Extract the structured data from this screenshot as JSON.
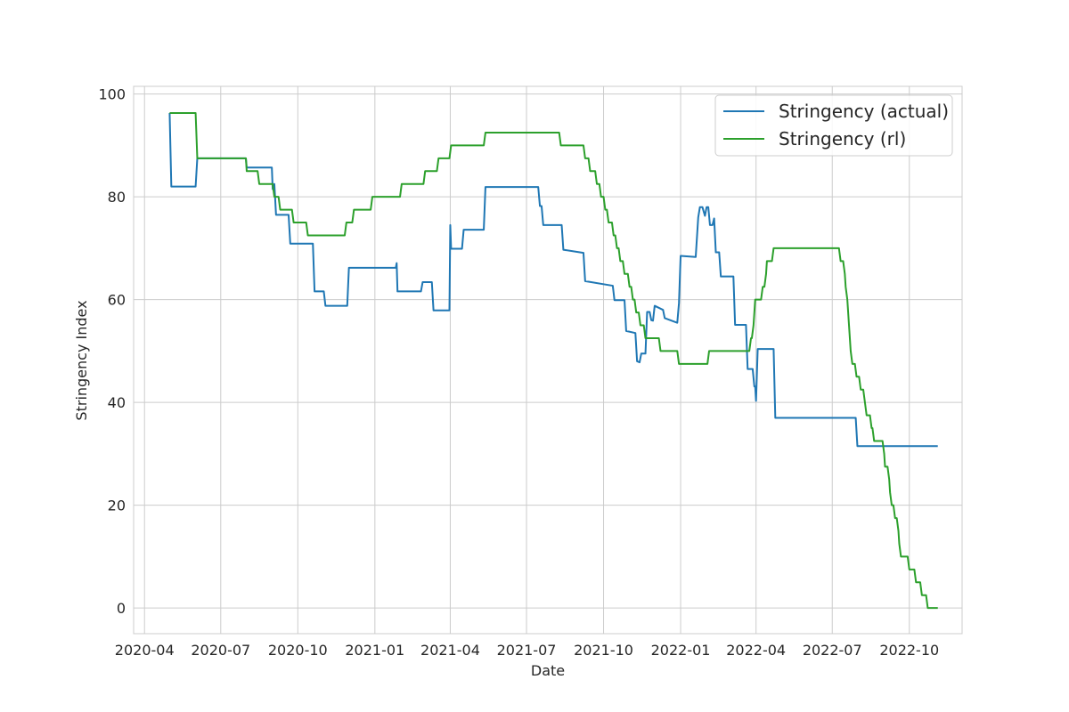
{
  "chart_data": {
    "type": "line",
    "title": "",
    "xlabel": "Date",
    "ylabel": "Stringency Index",
    "xlim": [
      "2020-03-19",
      "2022-12-03"
    ],
    "ylim": [
      -5,
      101.5
    ],
    "grid": true,
    "legend_position": "top-right",
    "x_ticks": [
      {
        "date": "2020-04-01",
        "label": "2020-04"
      },
      {
        "date": "2020-07-01",
        "label": "2020-07"
      },
      {
        "date": "2020-10-01",
        "label": "2020-10"
      },
      {
        "date": "2021-01-01",
        "label": "2021-01"
      },
      {
        "date": "2021-04-01",
        "label": "2021-04"
      },
      {
        "date": "2021-07-01",
        "label": "2021-07"
      },
      {
        "date": "2021-10-01",
        "label": "2021-10"
      },
      {
        "date": "2022-01-01",
        "label": "2022-01"
      },
      {
        "date": "2022-04-01",
        "label": "2022-04"
      },
      {
        "date": "2022-07-01",
        "label": "2022-07"
      },
      {
        "date": "2022-10-01",
        "label": "2022-10"
      }
    ],
    "y_ticks": [
      0,
      20,
      40,
      60,
      80,
      100
    ],
    "series": [
      {
        "name": "Stringency (actual)",
        "color": "#1f77b4",
        "points": [
          [
            "2020-05-01",
            96.3
          ],
          [
            "2020-05-03",
            82.0
          ],
          [
            "2020-06-01",
            82.0
          ],
          [
            "2020-06-03",
            87.5
          ],
          [
            "2020-07-31",
            87.5
          ],
          [
            "2020-08-01",
            85.7
          ],
          [
            "2020-08-31",
            85.7
          ],
          [
            "2020-09-01",
            81.5
          ],
          [
            "2020-09-03",
            82.5
          ],
          [
            "2020-09-05",
            76.5
          ],
          [
            "2020-09-20",
            76.5
          ],
          [
            "2020-09-22",
            70.9
          ],
          [
            "2020-10-19",
            70.9
          ],
          [
            "2020-10-21",
            61.6
          ],
          [
            "2020-11-01",
            61.6
          ],
          [
            "2020-11-03",
            58.8
          ],
          [
            "2020-11-29",
            58.8
          ],
          [
            "2020-12-01",
            66.2
          ],
          [
            "2021-01-26",
            66.2
          ],
          [
            "2021-01-27",
            67.1
          ],
          [
            "2021-01-28",
            61.6
          ],
          [
            "2021-02-25",
            61.6
          ],
          [
            "2021-02-27",
            63.4
          ],
          [
            "2021-03-10",
            63.4
          ],
          [
            "2021-03-12",
            57.9
          ],
          [
            "2021-03-31",
            57.9
          ],
          [
            "2021-04-01",
            74.5
          ],
          [
            "2021-04-02",
            69.9
          ],
          [
            "2021-04-15",
            69.9
          ],
          [
            "2021-04-17",
            73.6
          ],
          [
            "2021-05-11",
            73.6
          ],
          [
            "2021-05-13",
            81.9
          ],
          [
            "2021-07-15",
            81.9
          ],
          [
            "2021-07-17",
            78.2
          ],
          [
            "2021-07-19",
            78.2
          ],
          [
            "2021-07-21",
            74.5
          ],
          [
            "2021-08-12",
            74.5
          ],
          [
            "2021-08-14",
            69.7
          ],
          [
            "2021-09-07",
            69.1
          ],
          [
            "2021-09-09",
            63.6
          ],
          [
            "2021-10-12",
            62.7
          ],
          [
            "2021-10-14",
            59.9
          ],
          [
            "2021-10-26",
            59.9
          ],
          [
            "2021-10-28",
            53.9
          ],
          [
            "2021-11-08",
            53.5
          ],
          [
            "2021-11-10",
            48.0
          ],
          [
            "2021-11-13",
            47.8
          ],
          [
            "2021-11-15",
            49.5
          ],
          [
            "2021-11-20",
            49.5
          ],
          [
            "2021-11-22",
            57.6
          ],
          [
            "2021-11-25",
            57.6
          ],
          [
            "2021-11-27",
            56.0
          ],
          [
            "2021-11-29",
            55.9
          ],
          [
            "2021-12-01",
            58.8
          ],
          [
            "2021-12-11",
            58.0
          ],
          [
            "2021-12-13",
            56.4
          ],
          [
            "2021-12-28",
            55.5
          ],
          [
            "2021-12-30",
            59.3
          ],
          [
            "2022-01-01",
            68.5
          ],
          [
            "2022-01-19",
            68.3
          ],
          [
            "2022-01-22",
            76.0
          ],
          [
            "2022-01-24",
            78.0
          ],
          [
            "2022-01-27",
            78.0
          ],
          [
            "2022-01-30",
            76.3
          ],
          [
            "2022-02-01",
            78.0
          ],
          [
            "2022-02-03",
            78.0
          ],
          [
            "2022-02-05",
            74.5
          ],
          [
            "2022-02-08",
            74.5
          ],
          [
            "2022-02-10",
            75.8
          ],
          [
            "2022-02-12",
            69.2
          ],
          [
            "2022-02-16",
            69.2
          ],
          [
            "2022-02-18",
            64.5
          ],
          [
            "2022-03-05",
            64.5
          ],
          [
            "2022-03-07",
            55.1
          ],
          [
            "2022-03-20",
            55.1
          ],
          [
            "2022-03-22",
            46.5
          ],
          [
            "2022-03-28",
            46.5
          ],
          [
            "2022-03-30",
            43.1
          ],
          [
            "2022-03-31",
            43.1
          ],
          [
            "2022-04-01",
            40.3
          ],
          [
            "2022-04-03",
            50.4
          ],
          [
            "2022-04-22",
            50.4
          ],
          [
            "2022-04-24",
            37.0
          ],
          [
            "2022-07-29",
            37.0
          ],
          [
            "2022-07-31",
            31.5
          ],
          [
            "2022-11-04",
            31.5
          ]
        ]
      },
      {
        "name": "Stringency (rl)",
        "color": "#2ca02c",
        "points": [
          [
            "2020-05-01",
            96.3
          ],
          [
            "2020-06-01",
            96.3
          ],
          [
            "2020-06-03",
            87.5
          ],
          [
            "2020-07-31",
            87.5
          ],
          [
            "2020-08-01",
            85.0
          ],
          [
            "2020-08-14",
            85.0
          ],
          [
            "2020-08-16",
            82.5
          ],
          [
            "2020-09-01",
            82.5
          ],
          [
            "2020-09-03",
            80.0
          ],
          [
            "2020-09-08",
            80.0
          ],
          [
            "2020-09-10",
            77.5
          ],
          [
            "2020-09-24",
            77.5
          ],
          [
            "2020-09-26",
            75.0
          ],
          [
            "2020-10-11",
            75.0
          ],
          [
            "2020-10-13",
            72.5
          ],
          [
            "2020-11-26",
            72.5
          ],
          [
            "2020-11-28",
            75.0
          ],
          [
            "2020-12-05",
            75.0
          ],
          [
            "2020-12-07",
            77.5
          ],
          [
            "2020-12-27",
            77.5
          ],
          [
            "2020-12-29",
            80.0
          ],
          [
            "2021-01-31",
            80.0
          ],
          [
            "2021-02-02",
            82.5
          ],
          [
            "2021-02-28",
            82.5
          ],
          [
            "2021-03-02",
            85.0
          ],
          [
            "2021-03-16",
            85.0
          ],
          [
            "2021-03-18",
            87.5
          ],
          [
            "2021-03-31",
            87.5
          ],
          [
            "2021-04-02",
            90.0
          ],
          [
            "2021-05-11",
            90.0
          ],
          [
            "2021-05-13",
            92.5
          ],
          [
            "2021-08-09",
            92.5
          ],
          [
            "2021-08-11",
            90.0
          ],
          [
            "2021-09-07",
            90.0
          ],
          [
            "2021-09-09",
            87.5
          ],
          [
            "2021-09-13",
            87.5
          ],
          [
            "2021-09-15",
            85.0
          ],
          [
            "2021-09-21",
            85.0
          ],
          [
            "2021-09-23",
            82.5
          ],
          [
            "2021-09-26",
            82.5
          ],
          [
            "2021-09-28",
            80.0
          ],
          [
            "2021-10-01",
            80.0
          ],
          [
            "2021-10-03",
            77.5
          ],
          [
            "2021-10-05",
            77.5
          ],
          [
            "2021-10-07",
            75.0
          ],
          [
            "2021-10-11",
            75.0
          ],
          [
            "2021-10-13",
            72.5
          ],
          [
            "2021-10-15",
            72.5
          ],
          [
            "2021-10-17",
            70.0
          ],
          [
            "2021-10-19",
            70.0
          ],
          [
            "2021-10-21",
            67.5
          ],
          [
            "2021-10-24",
            67.5
          ],
          [
            "2021-10-26",
            65.0
          ],
          [
            "2021-10-30",
            65.0
          ],
          [
            "2021-11-01",
            62.5
          ],
          [
            "2021-11-03",
            62.5
          ],
          [
            "2021-11-05",
            60.0
          ],
          [
            "2021-11-07",
            60.0
          ],
          [
            "2021-11-09",
            57.5
          ],
          [
            "2021-11-12",
            57.5
          ],
          [
            "2021-11-14",
            55.0
          ],
          [
            "2021-11-18",
            55.0
          ],
          [
            "2021-11-20",
            52.5
          ],
          [
            "2021-12-06",
            52.5
          ],
          [
            "2021-12-08",
            50.0
          ],
          [
            "2021-12-28",
            50.0
          ],
          [
            "2021-12-30",
            47.5
          ],
          [
            "2022-02-02",
            47.5
          ],
          [
            "2022-02-04",
            50.0
          ],
          [
            "2022-03-24",
            50.0
          ],
          [
            "2022-03-26",
            52.5
          ],
          [
            "2022-03-27",
            52.5
          ],
          [
            "2022-03-29",
            55.0
          ],
          [
            "2022-03-31",
            60.0
          ],
          [
            "2022-04-07",
            60.0
          ],
          [
            "2022-04-09",
            62.5
          ],
          [
            "2022-04-11",
            62.5
          ],
          [
            "2022-04-13",
            65.0
          ],
          [
            "2022-04-14",
            67.5
          ],
          [
            "2022-04-20",
            67.5
          ],
          [
            "2022-04-22",
            70.0
          ],
          [
            "2022-07-09",
            70.0
          ],
          [
            "2022-07-11",
            67.5
          ],
          [
            "2022-07-14",
            67.5
          ],
          [
            "2022-07-16",
            65.0
          ],
          [
            "2022-07-17",
            62.5
          ],
          [
            "2022-07-19",
            60.0
          ],
          [
            "2022-07-21",
            55.0
          ],
          [
            "2022-07-23",
            50.0
          ],
          [
            "2022-07-25",
            47.5
          ],
          [
            "2022-07-28",
            47.5
          ],
          [
            "2022-07-30",
            45.0
          ],
          [
            "2022-08-02",
            45.0
          ],
          [
            "2022-08-04",
            42.5
          ],
          [
            "2022-08-07",
            42.5
          ],
          [
            "2022-08-09",
            40.0
          ],
          [
            "2022-08-11",
            37.5
          ],
          [
            "2022-08-15",
            37.5
          ],
          [
            "2022-08-17",
            35.0
          ],
          [
            "2022-08-18",
            35.0
          ],
          [
            "2022-08-20",
            32.5
          ],
          [
            "2022-08-30",
            32.5
          ],
          [
            "2022-09-01",
            30.0
          ],
          [
            "2022-09-02",
            27.5
          ],
          [
            "2022-09-05",
            27.5
          ],
          [
            "2022-09-07",
            25.0
          ],
          [
            "2022-09-08",
            22.5
          ],
          [
            "2022-09-10",
            20.0
          ],
          [
            "2022-09-12",
            20.0
          ],
          [
            "2022-09-14",
            17.5
          ],
          [
            "2022-09-16",
            17.5
          ],
          [
            "2022-09-18",
            15.0
          ],
          [
            "2022-09-19",
            12.5
          ],
          [
            "2022-09-21",
            10.0
          ],
          [
            "2022-09-29",
            10.0
          ],
          [
            "2022-10-01",
            7.5
          ],
          [
            "2022-10-07",
            7.5
          ],
          [
            "2022-10-09",
            5.0
          ],
          [
            "2022-10-14",
            5.0
          ],
          [
            "2022-10-16",
            2.5
          ],
          [
            "2022-10-21",
            2.5
          ],
          [
            "2022-10-23",
            0.0
          ],
          [
            "2022-11-04",
            0.0
          ]
        ]
      }
    ]
  }
}
